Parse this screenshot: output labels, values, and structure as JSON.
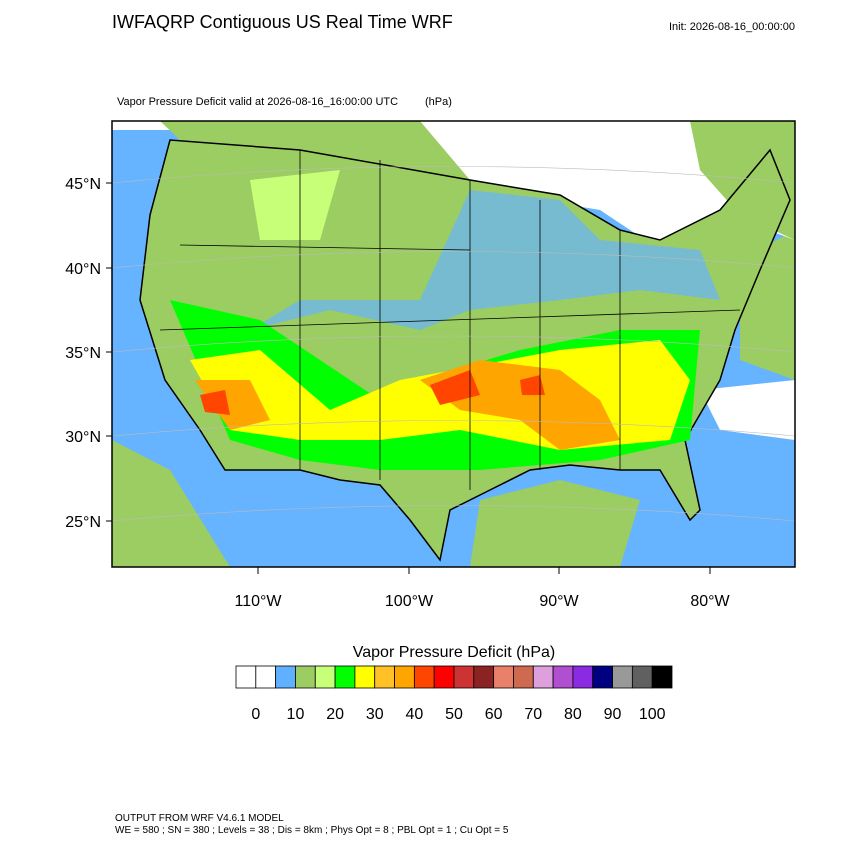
{
  "header": {
    "title": "IWFAQRP Contiguous US Real Time WRF",
    "init": "Init: 2026-08-16_00:00:00"
  },
  "map": {
    "subtitle": "Vapor Pressure Deficit valid at 2026-08-16_16:00:00 UTC",
    "units": "(hPa)",
    "lat_labels": [
      "45°N",
      "40°N",
      "35°N",
      "30°N",
      "25°N"
    ],
    "lon_labels": [
      "110°W",
      "100°W",
      "90°W",
      "80°W"
    ]
  },
  "colorbar": {
    "title": "Vapor Pressure Deficit  (hPa)",
    "colors": [
      "#ffffff",
      "#ffffff",
      "#5fb0ff",
      "#9ccd63",
      "#c8ff78",
      "#00ff00",
      "#ffff00",
      "#ffc125",
      "#ffa500",
      "#ff4500",
      "#ff0000",
      "#cd3333",
      "#8b2323",
      "#e9806a",
      "#cd6a50",
      "#dda0dd",
      "#b050d0",
      "#8a2be2",
      "#000080",
      "#999999",
      "#606060",
      "#000000"
    ],
    "labels": [
      "0",
      "10",
      "20",
      "30",
      "40",
      "50",
      "60",
      "70",
      "80",
      "90",
      "100"
    ]
  },
  "footer": {
    "line1": "OUTPUT FROM WRF V4.6.1 MODEL",
    "line2": "WE = 580 ; SN = 380 ; Levels = 38 ; Dis = 8km ; Phys Opt = 8 ; PBL Opt = 1 ; Cu Opt = 5"
  }
}
